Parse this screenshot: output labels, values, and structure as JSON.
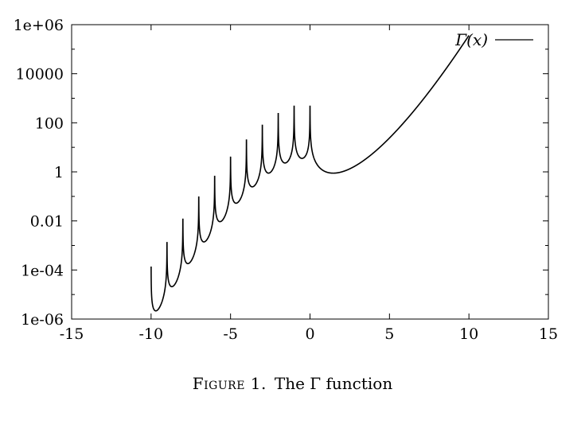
{
  "chart_data": {
    "type": "line",
    "title": "",
    "xlabel": "",
    "ylabel": "",
    "xlim": [
      -15,
      15
    ],
    "ylim": [
      1e-06,
      1000000.0
    ],
    "yscale": "log",
    "grid": false,
    "legend_position": "top-right",
    "x_ticks": [
      -15,
      -10,
      -5,
      0,
      5,
      10,
      15
    ],
    "x_tick_labels": [
      "-15",
      "-10",
      "-5",
      "0",
      "5",
      "10",
      "15"
    ],
    "y_ticks": [
      1e-06,
      0.0001,
      0.01,
      1,
      100,
      10000,
      1000000.0
    ],
    "y_tick_labels": [
      "1e-06",
      "1e-04",
      "0.01",
      "1",
      "100",
      "10000",
      "1e+06"
    ],
    "series": [
      {
        "name": "Γ(x)",
        "color": "#000000",
        "function": "abs-gamma",
        "x_range": [
          -10,
          10
        ]
      }
    ]
  },
  "caption": {
    "label": "Figure 1.",
    "text": "The Γ function"
  }
}
